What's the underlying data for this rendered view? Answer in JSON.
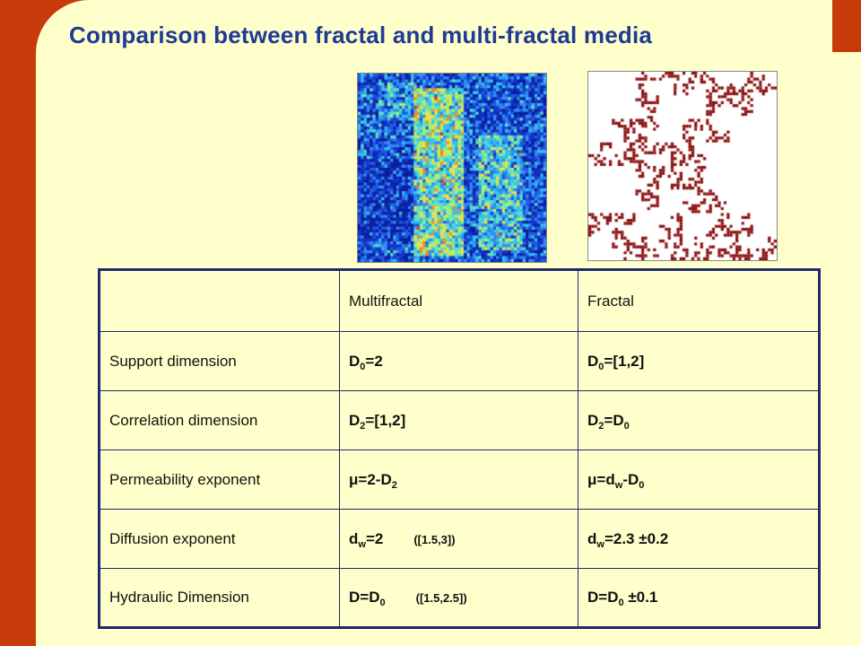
{
  "title": "Comparison between fractal and multi-fractal media",
  "colors": {
    "accent": "#C93A0A",
    "background": "#FFFFCC",
    "title": "#1F3A93",
    "highlight": "#D43A00"
  },
  "table": {
    "header": [
      "",
      "Multifractal",
      "Fractal"
    ],
    "rows": [
      {
        "label": "Support dimension",
        "multi": {
          "base": "D",
          "sub": "0",
          "rest": "=2"
        },
        "fractal": {
          "base": "D",
          "sub": "0",
          "rest": "=[1,2]"
        }
      },
      {
        "label": "Correlation dimension",
        "multi": {
          "base": "D",
          "sub": "2",
          "rest": "=[1,2]"
        },
        "fractal": {
          "base": "D",
          "sub": "2",
          "rest": "=D",
          "sub2": "0"
        }
      },
      {
        "label": "Permeability exponent",
        "multi": {
          "base": "μ=2-D",
          "sub": "2"
        },
        "fractal": {
          "base": "μ=d",
          "sub": "w",
          "rest": "-D",
          "sub2": "0"
        }
      },
      {
        "label": "Diffusion exponent",
        "multi": {
          "base": "d",
          "sub": "w",
          "rest": "=2",
          "note": "([1.5,3])"
        },
        "fractal": {
          "base": "d",
          "sub": "w",
          "rest": "=2.3 ±0.2"
        }
      },
      {
        "label": "Hydraulic Dimension",
        "multi": {
          "base": "D=D",
          "sub": "0",
          "note": "([1.5,2.5])"
        },
        "fractal": {
          "base": "D=D",
          "sub": "0",
          "rest": " ±0.1"
        }
      }
    ]
  }
}
